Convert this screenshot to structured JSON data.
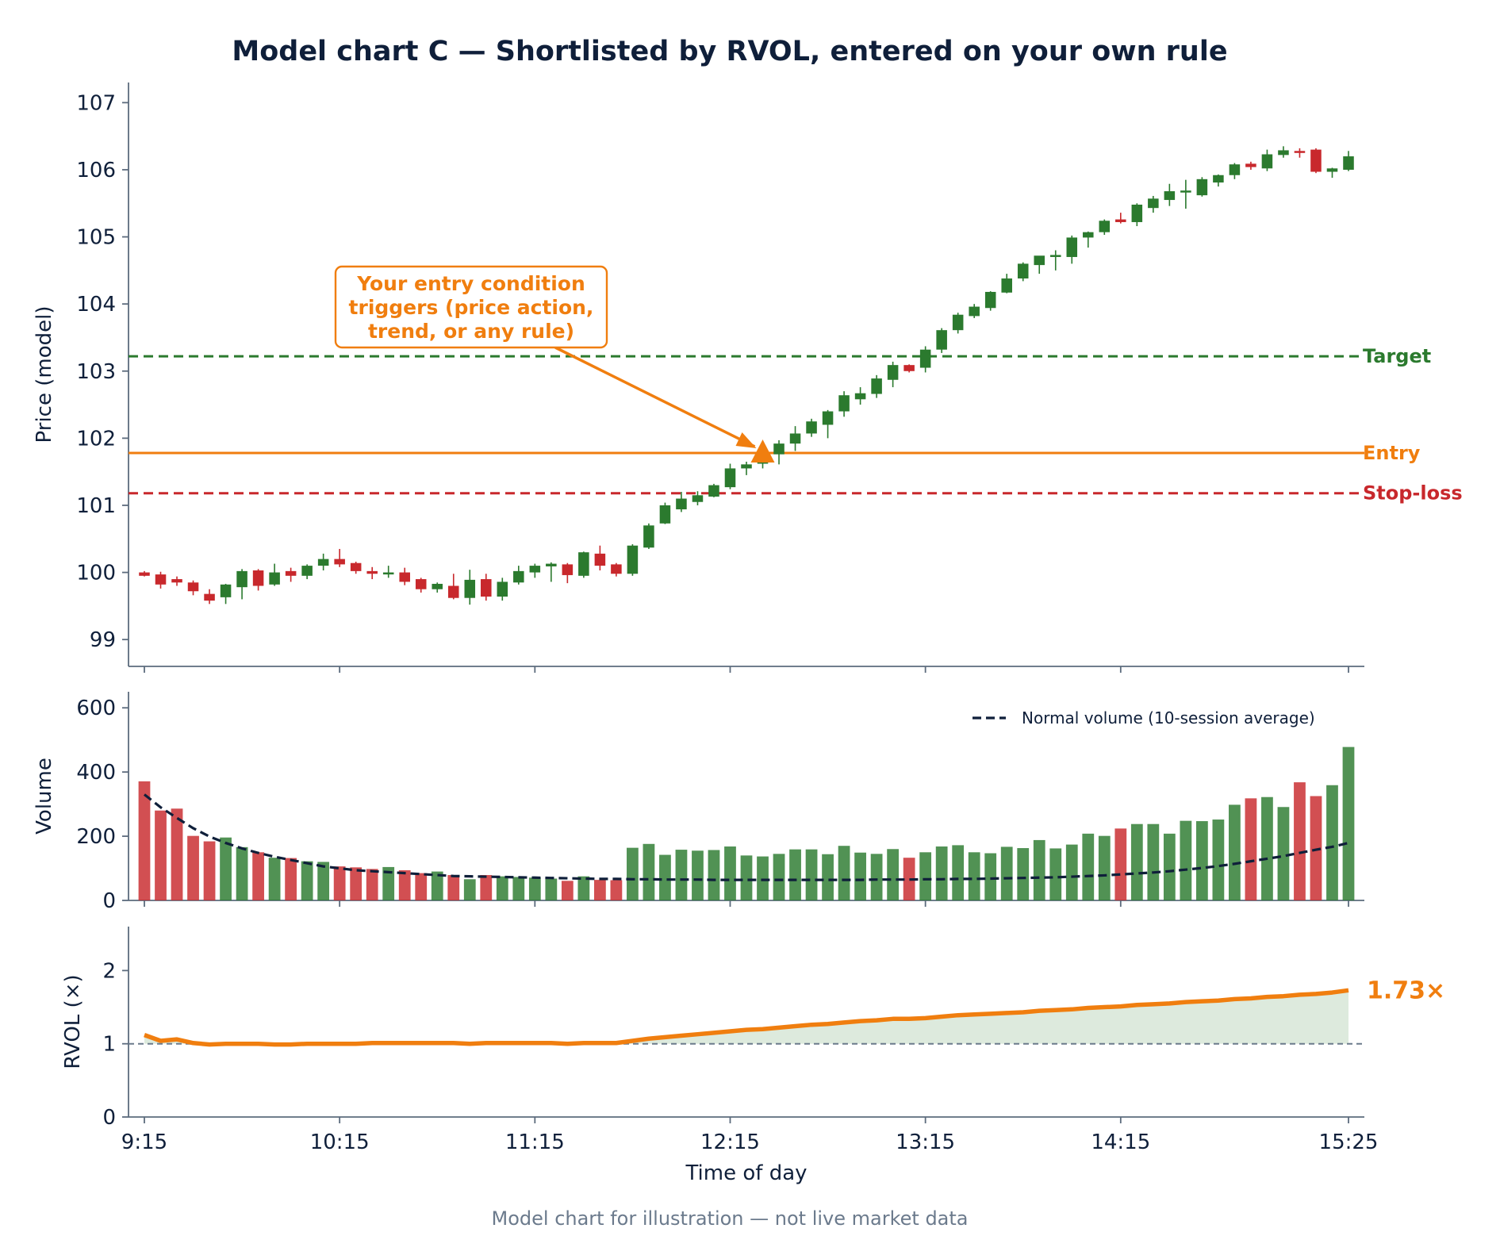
{
  "chart_data": [
    {
      "type": "candlestick",
      "title": "Model chart C — Shortlisted by RVOL, entered on your own rule",
      "ylabel": "Price (model)",
      "ylim": [
        98.6,
        107.3
      ],
      "yticks": [
        "99",
        "100",
        "101",
        "102",
        "103",
        "104",
        "105",
        "106",
        "107"
      ],
      "bars": 75,
      "x_start": "9:15",
      "x_step_minutes": 5,
      "colors": {
        "up": "#2b7a2e",
        "down": "#c8282c",
        "entry": "#f07e0f",
        "text": "#0f1f3a",
        "axis": "#5c6b7d"
      },
      "levels": [
        {
          "name": "Target",
          "value": 103.22,
          "color": "#2b7a2e",
          "style": "dashed"
        },
        {
          "name": "Entry",
          "value": 101.78,
          "color": "#f07e0f",
          "style": "solid"
        },
        {
          "name": "Stop-loss",
          "value": 101.18,
          "color": "#c8282c",
          "style": "dashed"
        }
      ],
      "entry_marker": {
        "bar": 38,
        "price": 101.78,
        "shape": "triangle"
      },
      "annotation": {
        "lines": [
          "Your entry condition",
          "triggers (price action,",
          "trend, or any rule)"
        ]
      },
      "ohlc": [
        [
          100.0,
          100.02,
          99.94,
          99.95
        ],
        [
          99.97,
          100.01,
          99.76,
          99.82
        ],
        [
          99.9,
          99.94,
          99.8,
          99.85
        ],
        [
          99.85,
          99.88,
          99.66,
          99.72
        ],
        [
          99.68,
          99.75,
          99.53,
          99.58
        ],
        [
          99.63,
          99.83,
          99.53,
          99.82
        ],
        [
          99.78,
          100.05,
          99.6,
          100.02
        ],
        [
          100.03,
          100.05,
          99.73,
          99.8
        ],
        [
          99.82,
          100.13,
          99.8,
          100.0
        ],
        [
          100.02,
          100.07,
          99.86,
          99.95
        ],
        [
          99.95,
          100.12,
          99.9,
          100.1
        ],
        [
          100.1,
          100.28,
          100.03,
          100.2
        ],
        [
          100.2,
          100.35,
          100.08,
          100.12
        ],
        [
          100.14,
          100.16,
          99.98,
          100.02
        ],
        [
          100.02,
          100.08,
          99.9,
          99.98
        ],
        [
          99.97,
          100.1,
          99.92,
          100.0
        ],
        [
          100.0,
          100.07,
          99.81,
          99.86
        ],
        [
          99.9,
          99.92,
          99.7,
          99.75
        ],
        [
          99.75,
          99.85,
          99.7,
          99.83
        ],
        [
          99.8,
          99.98,
          99.6,
          99.62
        ],
        [
          99.62,
          100.04,
          99.52,
          99.89
        ],
        [
          99.9,
          99.98,
          99.58,
          99.64
        ],
        [
          99.64,
          99.92,
          99.58,
          99.86
        ],
        [
          99.85,
          100.1,
          99.82,
          100.02
        ],
        [
          100.0,
          100.13,
          99.92,
          100.1
        ],
        [
          100.09,
          100.15,
          99.86,
          100.13
        ],
        [
          100.12,
          100.14,
          99.84,
          99.96
        ],
        [
          99.95,
          100.31,
          99.92,
          100.3
        ],
        [
          100.28,
          100.4,
          100.03,
          100.1
        ],
        [
          100.12,
          100.14,
          99.94,
          99.98
        ],
        [
          99.98,
          100.42,
          99.95,
          100.4
        ],
        [
          100.37,
          100.73,
          100.35,
          100.7
        ],
        [
          100.73,
          101.04,
          100.72,
          101.0
        ],
        [
          100.94,
          101.2,
          100.9,
          101.1
        ],
        [
          101.05,
          101.21,
          101.0,
          101.15
        ],
        [
          101.13,
          101.32,
          101.12,
          101.3
        ],
        [
          101.27,
          101.62,
          101.24,
          101.55
        ],
        [
          101.55,
          101.65,
          101.45,
          101.61
        ],
        [
          101.62,
          101.71,
          101.55,
          101.67
        ],
        [
          101.76,
          101.97,
          101.61,
          101.92
        ],
        [
          101.92,
          102.18,
          101.81,
          102.07
        ],
        [
          102.07,
          102.29,
          102.02,
          102.25
        ],
        [
          102.2,
          102.42,
          102.0,
          102.4
        ],
        [
          102.4,
          102.7,
          102.32,
          102.64
        ],
        [
          102.58,
          102.76,
          102.5,
          102.67
        ],
        [
          102.66,
          102.94,
          102.6,
          102.89
        ],
        [
          102.87,
          103.14,
          102.76,
          103.09
        ],
        [
          103.09,
          103.1,
          102.98,
          103.0
        ],
        [
          103.05,
          103.37,
          102.98,
          103.32
        ],
        [
          103.32,
          103.64,
          103.27,
          103.61
        ],
        [
          103.61,
          103.87,
          103.56,
          103.84
        ],
        [
          103.82,
          104.0,
          103.79,
          103.96
        ],
        [
          103.94,
          104.19,
          103.9,
          104.18
        ],
        [
          104.17,
          104.45,
          104.16,
          104.38
        ],
        [
          104.38,
          104.62,
          104.34,
          104.6
        ],
        [
          104.58,
          104.71,
          104.45,
          104.72
        ],
        [
          104.7,
          104.8,
          104.5,
          104.73
        ],
        [
          104.7,
          105.02,
          104.6,
          104.99
        ],
        [
          104.99,
          105.08,
          104.84,
          105.07
        ],
        [
          105.07,
          105.26,
          105.03,
          105.24
        ],
        [
          105.26,
          105.36,
          105.2,
          105.22
        ],
        [
          105.22,
          105.5,
          105.16,
          105.48
        ],
        [
          105.43,
          105.61,
          105.36,
          105.57
        ],
        [
          105.55,
          105.79,
          105.46,
          105.68
        ],
        [
          105.68,
          105.85,
          105.42,
          105.69
        ],
        [
          105.62,
          105.89,
          105.6,
          105.86
        ],
        [
          105.81,
          105.93,
          105.75,
          105.92
        ],
        [
          105.92,
          106.1,
          105.86,
          106.08
        ],
        [
          106.09,
          106.12,
          106.0,
          106.04
        ],
        [
          106.02,
          106.3,
          105.98,
          106.23
        ],
        [
          106.22,
          106.35,
          106.18,
          106.29
        ],
        [
          106.28,
          106.32,
          106.18,
          106.27
        ],
        [
          106.3,
          106.32,
          105.95,
          105.97
        ],
        [
          105.97,
          106.03,
          105.88,
          106.02
        ],
        [
          106.0,
          106.28,
          105.98,
          106.2
        ]
      ]
    },
    {
      "type": "bar",
      "ylabel": "Volume",
      "ylim": [
        0,
        650
      ],
      "yticks": [
        "0",
        "200",
        "400",
        "600"
      ],
      "legend": {
        "label": "Normal volume (10-session average)",
        "position": "top-right"
      },
      "values": [
        371,
        280,
        286,
        201,
        184,
        196,
        166,
        150,
        133,
        132,
        122,
        120,
        106,
        103,
        98,
        104,
        94,
        85,
        90,
        79,
        66,
        79,
        75,
        73,
        71,
        68,
        61,
        75,
        64,
        63,
        164,
        176,
        142,
        158,
        155,
        157,
        168,
        140,
        137,
        145,
        159,
        159,
        144,
        170,
        149,
        145,
        160,
        133,
        150,
        168,
        172,
        150,
        147,
        167,
        163,
        188,
        162,
        174,
        208,
        201,
        224,
        238,
        238,
        208,
        248,
        247,
        252,
        298,
        318,
        322,
        291,
        368,
        325,
        359,
        478
      ],
      "normal_volume": [
        330,
        290,
        257,
        225,
        199,
        179,
        162,
        148,
        136,
        126,
        116,
        106,
        100,
        94,
        91,
        88,
        85,
        82,
        79,
        76,
        75,
        74,
        73,
        72,
        71,
        70,
        69,
        68,
        67,
        67,
        66,
        66,
        65,
        65,
        65,
        64,
        64,
        64,
        64,
        64,
        64,
        64,
        64,
        64,
        64,
        65,
        65,
        65,
        66,
        66,
        67,
        67,
        68,
        69,
        70,
        71,
        72,
        74,
        76,
        78,
        81,
        84,
        87,
        91,
        96,
        101,
        107,
        114,
        122,
        130,
        138,
        148,
        158,
        167,
        179
      ]
    },
    {
      "type": "area",
      "ylabel": "RVOL (×)",
      "xlabel": "Time of day",
      "ylim": [
        0,
        2.6
      ],
      "yticks": [
        "0",
        "1",
        "2"
      ],
      "xticks": [
        "9:15",
        "10:15",
        "11:15",
        "12:15",
        "13:15",
        "14:15",
        "15:25"
      ],
      "reference_line": 1,
      "final_label": "1.73×",
      "values": [
        1.12,
        1.04,
        1.06,
        1.01,
        0.99,
        1.0,
        1.0,
        1.0,
        0.99,
        0.99,
        1.0,
        1.0,
        1.0,
        1.0,
        1.01,
        1.01,
        1.01,
        1.01,
        1.01,
        1.01,
        1.0,
        1.01,
        1.01,
        1.01,
        1.01,
        1.01,
        1.0,
        1.01,
        1.01,
        1.01,
        1.04,
        1.07,
        1.09,
        1.11,
        1.13,
        1.15,
        1.17,
        1.19,
        1.2,
        1.22,
        1.24,
        1.26,
        1.27,
        1.29,
        1.31,
        1.32,
        1.34,
        1.34,
        1.35,
        1.37,
        1.39,
        1.4,
        1.41,
        1.42,
        1.43,
        1.45,
        1.46,
        1.47,
        1.49,
        1.5,
        1.51,
        1.53,
        1.54,
        1.55,
        1.57,
        1.58,
        1.59,
        1.61,
        1.62,
        1.64,
        1.65,
        1.67,
        1.68,
        1.7,
        1.73
      ]
    }
  ],
  "footer": "Model chart for illustration — not live market data"
}
